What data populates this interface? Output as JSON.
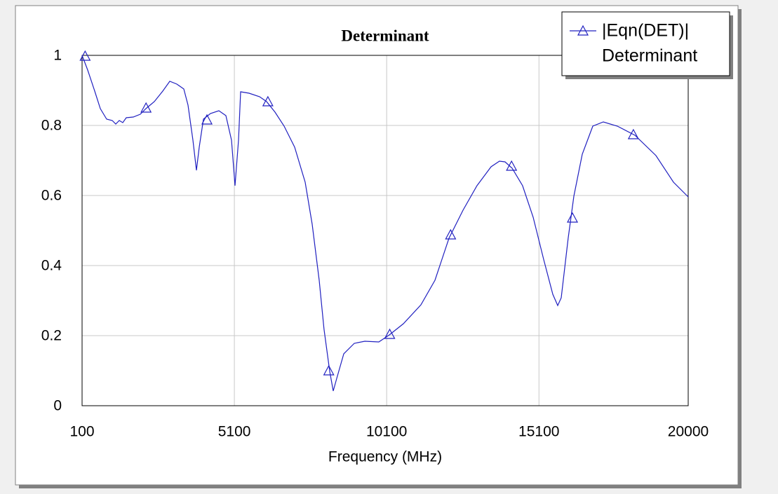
{
  "chart_data": {
    "type": "line",
    "title": "Determinant",
    "x_label": "Frequency (MHz)",
    "xlim": [
      100,
      20000
    ],
    "xticks": [
      100,
      5100,
      10100,
      15100,
      20000
    ],
    "ylim": [
      0,
      1
    ],
    "yticks": [
      0,
      0.2,
      0.4,
      0.6,
      0.8,
      1
    ],
    "grid": true,
    "legend": "top-right",
    "series": [
      {
        "name": "|Eqn(DET)|",
        "source": "Determinant",
        "color": "#2020c0",
        "x": [
          100,
          284,
          515,
          699,
          906,
          1090,
          1205,
          1321,
          1436,
          1551,
          1781,
          2012,
          2196,
          2472,
          2749,
          2979,
          3209,
          3439,
          3578,
          3739,
          3854,
          3946,
          4084,
          4315,
          4591,
          4822,
          5006,
          5121,
          5236,
          5305,
          5582,
          5927,
          6157,
          6434,
          6733,
          7078,
          7424,
          7654,
          7884,
          8045,
          8230,
          8345,
          8460,
          8690,
          9036,
          9381,
          9842,
          10187,
          10648,
          11224,
          11685,
          12145,
          12606,
          13066,
          13527,
          13803,
          13987,
          14218,
          14563,
          14909,
          15254,
          15554,
          15715,
          15830,
          16060,
          16245,
          16521,
          16867,
          17212,
          17673,
          18249,
          18940,
          19516,
          20000
        ],
        "values": [
          1.0,
          0.958,
          0.898,
          0.848,
          0.818,
          0.814,
          0.804,
          0.814,
          0.808,
          0.822,
          0.824,
          0.832,
          0.848,
          0.868,
          0.898,
          0.926,
          0.918,
          0.904,
          0.858,
          0.758,
          0.672,
          0.738,
          0.818,
          0.834,
          0.842,
          0.828,
          0.758,
          0.628,
          0.758,
          0.896,
          0.892,
          0.882,
          0.868,
          0.838,
          0.798,
          0.738,
          0.638,
          0.518,
          0.358,
          0.218,
          0.098,
          0.042,
          0.078,
          0.148,
          0.178,
          0.184,
          0.182,
          0.202,
          0.234,
          0.288,
          0.358,
          0.478,
          0.558,
          0.628,
          0.682,
          0.698,
          0.696,
          0.678,
          0.628,
          0.538,
          0.418,
          0.318,
          0.286,
          0.308,
          0.478,
          0.598,
          0.718,
          0.798,
          0.81,
          0.798,
          0.772,
          0.714,
          0.638,
          0.596
        ],
        "marker_x": [
          200,
          2200,
          4200,
          6200,
          8200,
          10200,
          12200,
          14200,
          16200,
          18200
        ],
        "marker_values": [
          0.996,
          0.848,
          0.814,
          0.866,
          0.098,
          0.202,
          0.486,
          0.682,
          0.534,
          0.772
        ]
      }
    ]
  }
}
